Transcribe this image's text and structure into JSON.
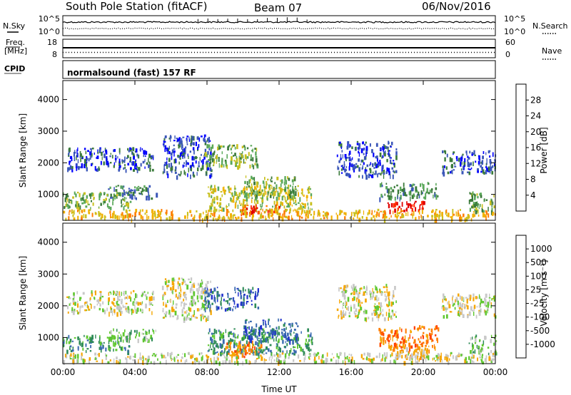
{
  "header": {
    "station": "South Pole Station (fitACF)",
    "beam": "Beam 07",
    "date": "06/Nov/2016"
  },
  "side_labels": {
    "nsky": "N.Sky",
    "freq_line1": "Freq.",
    "freq_line2": "[MHz]",
    "cpid": "CPID",
    "nsearch": "N.Search",
    "nave": "Nave"
  },
  "cpid_text": "normalsound (fast) 157 RF",
  "colors": {
    "power_scale": [
      "#0000ff",
      "#3a56b8",
      "#3a7a3a",
      "#5aa85a",
      "#c8c020",
      "#f0b000",
      "#ff7d00",
      "#ff2a00",
      "#e00000"
    ],
    "velocity_scale": [
      "#e00000",
      "#ff4000",
      "#ff7d00",
      "#f5a600",
      "#c8c8c8",
      "#60c830",
      "#2e8b57",
      "#3a6ab0",
      "#2233cc"
    ]
  },
  "chart_data": [
    {
      "type": "line",
      "name": "noise-sky-search",
      "left_ticks": [
        "10^5",
        "10^0"
      ],
      "right_ticks": [
        "10^5",
        "10^0"
      ],
      "x_range": [
        0,
        24
      ]
    },
    {
      "type": "line",
      "name": "frequency-nave",
      "left_ticks": [
        "18",
        "8"
      ],
      "right_ticks": [
        "60",
        "0"
      ],
      "x_range": [
        0,
        24
      ]
    },
    {
      "type": "heatmap",
      "name": "power",
      "xlabel": "",
      "ylabel": "Slant Range [km]",
      "ylim": [
        180,
        4600
      ],
      "yticks": [
        "1000",
        "2000",
        "3000",
        "4000"
      ],
      "ytick_values": [
        1000,
        2000,
        3000,
        4000
      ],
      "xlim": [
        0,
        24
      ],
      "colorbar_label": "Power [dB]",
      "colorbar_ticks": [
        "4",
        "8",
        "12",
        "16",
        "20",
        "24",
        "28"
      ],
      "regions": [
        {
          "t0": 0.0,
          "t1": 3.8,
          "r0": 600,
          "r1": 1100,
          "level": 3
        },
        {
          "t0": 2.5,
          "t1": 5.2,
          "r0": 900,
          "r1": 1300,
          "level": 2
        },
        {
          "t0": 0.2,
          "t1": 5.0,
          "r0": 1800,
          "r1": 2500,
          "level": 1
        },
        {
          "t0": 5.5,
          "t1": 8.2,
          "r0": 1600,
          "r1": 2900,
          "level": 1
        },
        {
          "t0": 7.8,
          "t1": 10.8,
          "r0": 1900,
          "r1": 2600,
          "level": 3
        },
        {
          "t0": 8.0,
          "t1": 13.8,
          "r0": 500,
          "r1": 1300,
          "level": 4
        },
        {
          "t0": 9.8,
          "t1": 12.0,
          "r0": 400,
          "r1": 700,
          "level": 7
        },
        {
          "t0": 10.0,
          "t1": 13.0,
          "r0": 900,
          "r1": 1600,
          "level": 3
        },
        {
          "t0": 15.2,
          "t1": 18.5,
          "r0": 1600,
          "r1": 2700,
          "level": 1
        },
        {
          "t0": 17.5,
          "t1": 20.8,
          "r0": 900,
          "r1": 1400,
          "level": 2
        },
        {
          "t0": 18.0,
          "t1": 20.3,
          "r0": 500,
          "r1": 800,
          "level": 8
        },
        {
          "t0": 21.0,
          "t1": 24.0,
          "r0": 1700,
          "r1": 2400,
          "level": 1
        },
        {
          "t0": 22.5,
          "t1": 24.0,
          "r0": 500,
          "r1": 1100,
          "level": 3
        },
        {
          "t0": 0.0,
          "t1": 24.0,
          "r0": 250,
          "r1": 550,
          "level": 5
        }
      ]
    },
    {
      "type": "heatmap",
      "name": "velocity",
      "xlabel": "Time UT",
      "ylabel": "Slant Range [km]",
      "ylim": [
        180,
        4600
      ],
      "yticks": [
        "1000",
        "2000",
        "3000",
        "4000"
      ],
      "ytick_values": [
        1000,
        2000,
        3000,
        4000
      ],
      "xlim": [
        0,
        24
      ],
      "xticks": [
        "00:00",
        "04:00",
        "08:00",
        "12:00",
        "16:00",
        "20:00",
        "00:00"
      ],
      "xtick_values": [
        0,
        4,
        8,
        12,
        16,
        20,
        24
      ],
      "colorbar_label": "Velocity [m s⁻¹]",
      "colorbar_ticks": [
        "1000",
        "500",
        "100",
        "25",
        "-25",
        "-100",
        "-500",
        "-1000"
      ],
      "regions": [
        {
          "t0": 0.0,
          "t1": 3.8,
          "r0": 600,
          "r1": 1100,
          "level": 6
        },
        {
          "t0": 2.5,
          "t1": 5.2,
          "r0": 900,
          "r1": 1300,
          "level": 5
        },
        {
          "t0": 0.2,
          "t1": 5.0,
          "r0": 1800,
          "r1": 2500,
          "level": 4
        },
        {
          "t0": 5.5,
          "t1": 8.2,
          "r0": 1600,
          "r1": 2900,
          "level": 4
        },
        {
          "t0": 7.8,
          "t1": 10.8,
          "r0": 1900,
          "r1": 2600,
          "level": 7
        },
        {
          "t0": 8.0,
          "t1": 13.8,
          "r0": 500,
          "r1": 1300,
          "level": 6
        },
        {
          "t0": 9.0,
          "t1": 11.0,
          "r0": 400,
          "r1": 900,
          "level": 2
        },
        {
          "t0": 10.0,
          "t1": 13.0,
          "r0": 900,
          "r1": 1600,
          "level": 7
        },
        {
          "t0": 15.2,
          "t1": 18.5,
          "r0": 1600,
          "r1": 2700,
          "level": 4
        },
        {
          "t0": 17.5,
          "t1": 20.8,
          "r0": 700,
          "r1": 1400,
          "level": 2
        },
        {
          "t0": 18.0,
          "t1": 20.3,
          "r0": 400,
          "r1": 800,
          "level": 3
        },
        {
          "t0": 21.0,
          "t1": 24.0,
          "r0": 1700,
          "r1": 2400,
          "level": 4
        },
        {
          "t0": 22.5,
          "t1": 24.0,
          "r0": 500,
          "r1": 1100,
          "level": 5
        },
        {
          "t0": 0.0,
          "t1": 24.0,
          "r0": 250,
          "r1": 550,
          "level": 4
        }
      ]
    }
  ]
}
